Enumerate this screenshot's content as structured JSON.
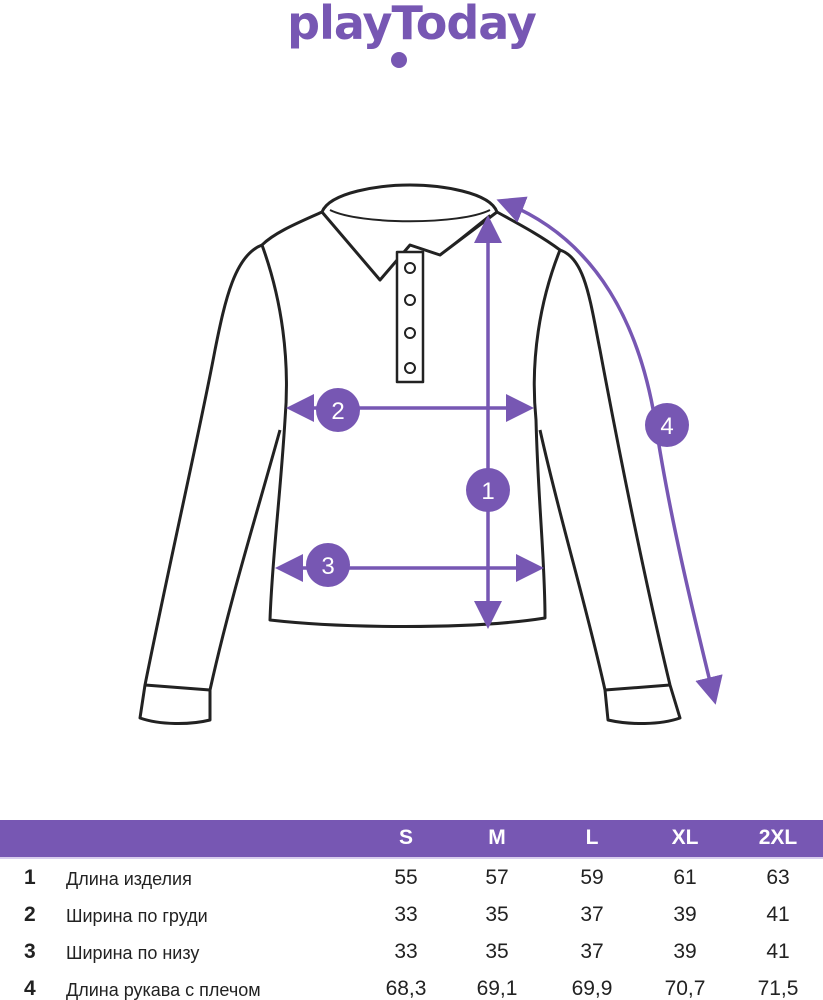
{
  "brand": {
    "logo_text": "playToday",
    "color": "#7757b3"
  },
  "diagram": {
    "markers": [
      "1",
      "2",
      "3",
      "4"
    ]
  },
  "table": {
    "sizes": [
      "S",
      "M",
      "L",
      "XL",
      "2XL"
    ],
    "rows": [
      {
        "num": "1",
        "label": "Длина изделия",
        "values": [
          "55",
          "57",
          "59",
          "61",
          "63"
        ]
      },
      {
        "num": "2",
        "label": "Ширина по груди",
        "values": [
          "33",
          "35",
          "37",
          "39",
          "41"
        ]
      },
      {
        "num": "3",
        "label": "Ширина по низу",
        "values": [
          "33",
          "35",
          "37",
          "39",
          "41"
        ]
      },
      {
        "num": "4",
        "label": "Длина рукава с плечом",
        "values": [
          "68,3",
          "69,1",
          "69,9",
          "70,7",
          "71,5"
        ]
      }
    ]
  }
}
